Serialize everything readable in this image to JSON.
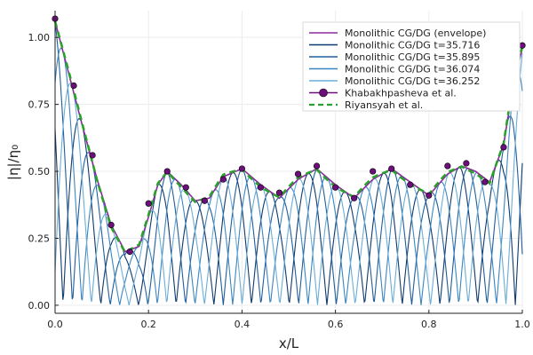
{
  "chart_data": {
    "type": "line",
    "title": "",
    "xlabel": "x/L",
    "ylabel": "|η|/η₀",
    "xlim": [
      0,
      1
    ],
    "ylim": [
      -0.03,
      1.1
    ],
    "x_ticks": [
      0.0,
      0.2,
      0.4,
      0.6,
      0.8,
      1.0
    ],
    "x_tick_labels": [
      "0.0",
      "0.2",
      "0.4",
      "0.6",
      "0.8",
      "1.0"
    ],
    "y_ticks": [
      0.0,
      0.25,
      0.5,
      0.75,
      1.0
    ],
    "y_tick_labels": [
      "0.00",
      "0.25",
      "0.50",
      "0.75",
      "1.00"
    ],
    "grid": true,
    "legend_position": "top-right",
    "envelope_knots": [
      [
        0.0,
        1.06
      ],
      [
        0.03,
        0.86
      ],
      [
        0.06,
        0.66
      ],
      [
        0.09,
        0.47
      ],
      [
        0.12,
        0.3
      ],
      [
        0.15,
        0.2
      ],
      [
        0.18,
        0.22
      ],
      [
        0.2,
        0.33
      ],
      [
        0.22,
        0.45
      ],
      [
        0.24,
        0.5
      ],
      [
        0.27,
        0.45
      ],
      [
        0.3,
        0.39
      ],
      [
        0.33,
        0.4
      ],
      [
        0.36,
        0.48
      ],
      [
        0.4,
        0.51
      ],
      [
        0.44,
        0.45
      ],
      [
        0.48,
        0.4
      ],
      [
        0.52,
        0.47
      ],
      [
        0.56,
        0.51
      ],
      [
        0.6,
        0.45
      ],
      [
        0.64,
        0.4
      ],
      [
        0.68,
        0.47
      ],
      [
        0.72,
        0.51
      ],
      [
        0.76,
        0.46
      ],
      [
        0.8,
        0.41
      ],
      [
        0.84,
        0.49
      ],
      [
        0.87,
        0.52
      ],
      [
        0.9,
        0.5
      ],
      [
        0.93,
        0.46
      ],
      [
        0.96,
        0.6
      ],
      [
        0.98,
        0.82
      ],
      [
        1.0,
        0.96
      ]
    ],
    "series": [
      {
        "name": "Monolithic CG/DG (envelope)",
        "color": "#8b2a9e",
        "style": "solid",
        "width": 1.6
      },
      {
        "name": "Monolithic CG/DG t=35.716",
        "color": "#0e3a6e",
        "style": "solid",
        "width": 1.1,
        "phase": 0.0
      },
      {
        "name": "Monolithic CG/DG t=35.895",
        "color": "#1f5e9c",
        "style": "solid",
        "width": 1.1,
        "phase": 0.7854
      },
      {
        "name": "Monolithic CG/DG t=36.074",
        "color": "#3a86c2",
        "style": "solid",
        "width": 1.1,
        "phase": 1.5708
      },
      {
        "name": "Monolithic CG/DG t=36.252",
        "color": "#6aadd8",
        "style": "solid",
        "width": 1.1,
        "phase": 2.3562
      },
      {
        "name": "Khabakhpasheva et al.",
        "color": "#6d0f7a",
        "style": "marker",
        "width": 1.4,
        "x": [
          0.0,
          0.04,
          0.08,
          0.12,
          0.16,
          0.2,
          0.24,
          0.28,
          0.32,
          0.36,
          0.4,
          0.44,
          0.48,
          0.52,
          0.56,
          0.6,
          0.64,
          0.68,
          0.72,
          0.76,
          0.8,
          0.84,
          0.88,
          0.92,
          0.96,
          1.0
        ],
        "y": [
          1.07,
          0.82,
          0.56,
          0.3,
          0.2,
          0.38,
          0.5,
          0.44,
          0.39,
          0.47,
          0.51,
          0.44,
          0.42,
          0.49,
          0.52,
          0.44,
          0.4,
          0.5,
          0.51,
          0.45,
          0.41,
          0.52,
          0.53,
          0.46,
          0.59,
          0.97
        ]
      },
      {
        "name": "Riyansyah et al.",
        "color": "#2ca02c",
        "style": "dashed",
        "width": 2.6
      }
    ]
  }
}
